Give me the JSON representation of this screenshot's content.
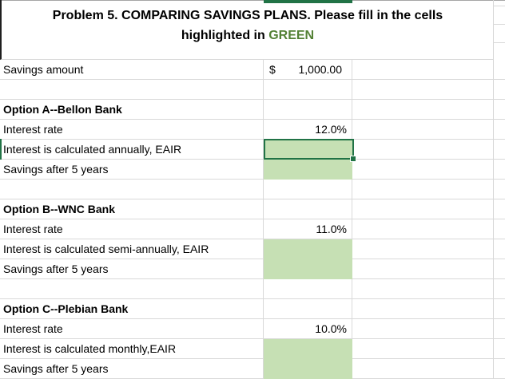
{
  "title": {
    "line1": "Problem 5. COMPARING SAVINGS PLANS. Please fill in the cells",
    "line2_prefix": "highlighted in ",
    "line2_highlight": "GREEN"
  },
  "rows": [
    {
      "label": "Savings amount",
      "style": "money",
      "currency_symbol": "$",
      "currency_amount": "1,000.00"
    },
    {
      "label": "",
      "style": "empty"
    },
    {
      "label": "Option A--Bellon Bank",
      "style": "bold"
    },
    {
      "label": "Interest rate",
      "style": "percent",
      "value": "12.0%"
    },
    {
      "label": "Interest is calculated annually, EAIR",
      "style": "green-selected",
      "value": ""
    },
    {
      "label": "Savings after 5 years",
      "style": "green",
      "value": ""
    },
    {
      "label": "",
      "style": "empty"
    },
    {
      "label": "Option B--WNC Bank",
      "style": "bold"
    },
    {
      "label": "Interest rate",
      "style": "percent",
      "value": "11.0%"
    },
    {
      "label": "Interest is calculated semi-annually, EAIR",
      "style": "green",
      "value": ""
    },
    {
      "label": "Savings after 5 years",
      "style": "green",
      "value": ""
    },
    {
      "label": "",
      "style": "empty"
    },
    {
      "label": "Option C--Plebian Bank",
      "style": "bold"
    },
    {
      "label": "Interest rate",
      "style": "percent",
      "value": "10.0%"
    },
    {
      "label": "Interest is calculated monthly,EAIR",
      "style": "green",
      "value": ""
    },
    {
      "label": "Savings after 5 years",
      "style": "green",
      "value": ""
    }
  ],
  "colors": {
    "green_fill": "#C6E0B4",
    "selection_green": "#217346",
    "title_green": "#538135",
    "gridline": "#D9D9D9"
  }
}
